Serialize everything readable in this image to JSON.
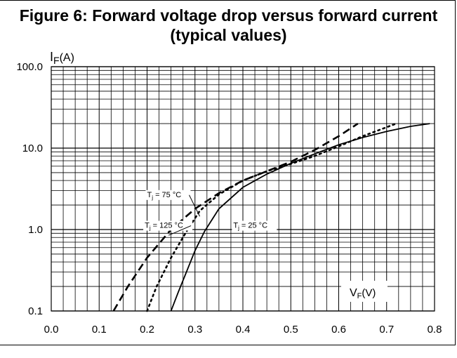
{
  "chart_data": {
    "type": "line",
    "title": "Figure 6: Forward voltage drop versus forward current (typical values)",
    "xlabel": "V",
    "xlabel_sub": "F",
    "xlabel_unit": "(V)",
    "ylabel": "I",
    "ylabel_sub": "F",
    "ylabel_unit": "(A)",
    "xlim": [
      0.0,
      0.8
    ],
    "ylim": [
      0.1,
      100.0
    ],
    "yscale": "log",
    "grid": true,
    "x_ticks": [
      "0.0",
      "0.1",
      "0.2",
      "0.3",
      "0.4",
      "0.5",
      "0.6",
      "0.7",
      "0.8"
    ],
    "y_ticks": [
      "0.1",
      "1.0",
      "10.0",
      "100.0"
    ],
    "series": [
      {
        "name": "Tj = 25 °C",
        "style": "solid",
        "x": [
          0.25,
          0.265,
          0.28,
          0.3,
          0.32,
          0.35,
          0.4,
          0.45,
          0.5,
          0.55,
          0.6,
          0.65,
          0.7,
          0.75,
          0.79
        ],
        "y": [
          0.1,
          0.17,
          0.28,
          0.55,
          0.95,
          1.8,
          3.3,
          4.8,
          6.5,
          8.5,
          11.0,
          13.5,
          16.0,
          18.5,
          20.0
        ]
      },
      {
        "name": "Tj = 75 °C",
        "style": "dotted",
        "x": [
          0.2,
          0.22,
          0.25,
          0.28,
          0.31,
          0.35,
          0.4,
          0.45,
          0.5,
          0.55,
          0.6,
          0.65,
          0.72
        ],
        "y": [
          0.1,
          0.2,
          0.45,
          0.9,
          1.7,
          2.7,
          4.0,
          5.2,
          6.4,
          8.0,
          10.5,
          14.0,
          20.0
        ]
      },
      {
        "name": "Tj = 125 °C",
        "style": "dashed",
        "x": [
          0.13,
          0.16,
          0.2,
          0.25,
          0.3,
          0.35,
          0.4,
          0.45,
          0.5,
          0.55,
          0.6,
          0.64
        ],
        "y": [
          0.1,
          0.2,
          0.45,
          1.0,
          1.8,
          2.8,
          4.0,
          5.2,
          6.8,
          9.5,
          14.0,
          20.0
        ]
      }
    ],
    "annotations": [
      {
        "series": "Tj = 75 °C",
        "prefix": "T",
        "sub": "j",
        "suffix": " = 75 °C",
        "at": [
          0.2,
          2.5
        ],
        "arrow_to": [
          0.31,
          1.45
        ]
      },
      {
        "series": "Tj = 125 °C",
        "prefix": "T",
        "sub": "j",
        "suffix": " = 125 °C",
        "at": [
          0.195,
          1.05
        ],
        "arrow_to": [
          0.245,
          0.85
        ]
      },
      {
        "series": "Tj = 25 °C",
        "prefix": "T",
        "sub": "j",
        "suffix": " = 25 °C",
        "at": [
          0.38,
          1.05
        ],
        "arrow_to": null
      }
    ]
  }
}
